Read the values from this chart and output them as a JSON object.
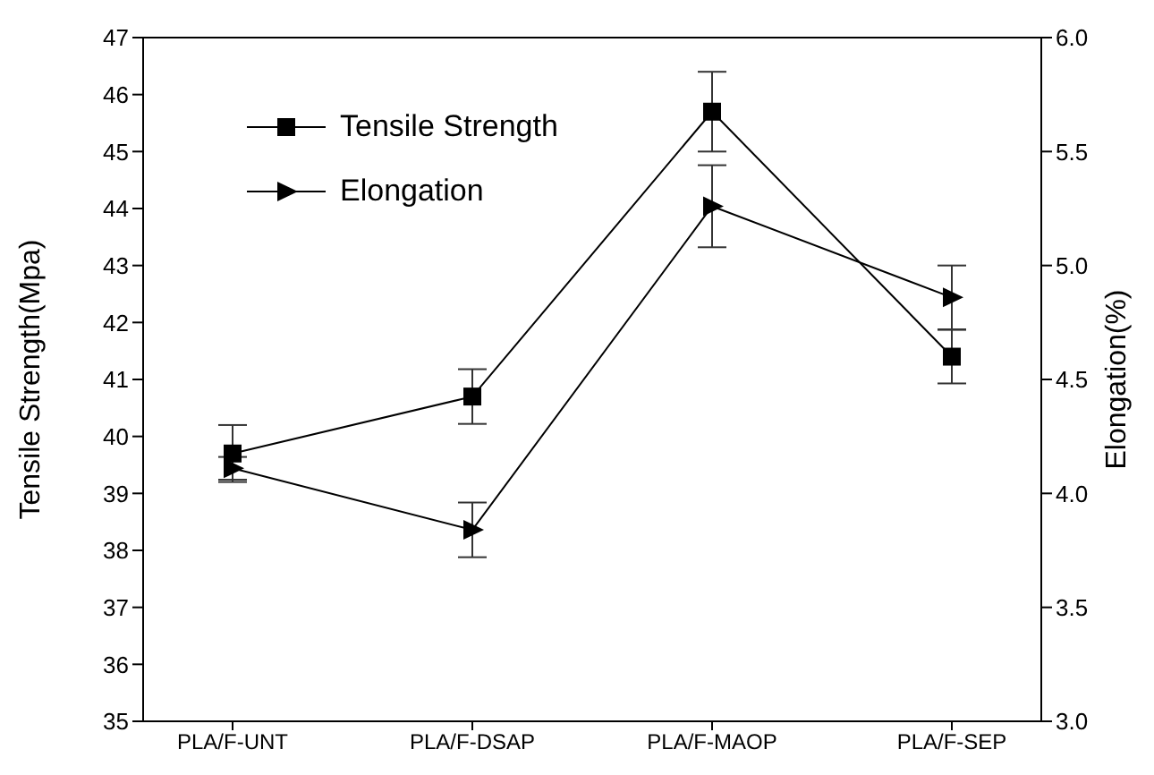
{
  "chart_data": {
    "type": "line",
    "categories": [
      "PLA/F-UNT",
      "PLA/F-DSAP",
      "PLA/F-MAOP",
      "PLA/F-SEP"
    ],
    "ylabel": "Tensile Strength(Mpa)",
    "y2label": "Elongation(%)",
    "ylim": [
      35,
      47
    ],
    "yticks": [
      35,
      36,
      37,
      38,
      39,
      40,
      41,
      42,
      43,
      44,
      45,
      46,
      47
    ],
    "y2lim": [
      3.0,
      6.0
    ],
    "y2ticks": [
      {
        "value": 3,
        "label": "3.0"
      },
      {
        "value": 3.5,
        "label": "3.5"
      },
      {
        "value": 4,
        "label": "4.0"
      },
      {
        "value": 4.5,
        "label": "4.5"
      },
      {
        "value": 5,
        "label": "5.0"
      },
      {
        "value": 5.5,
        "label": "5.5"
      },
      {
        "value": 6,
        "label": "6.0"
      }
    ],
    "legend": "top left",
    "series": [
      {
        "name": "Tensile Strength",
        "color": "#000000",
        "marker": "square",
        "values": [
          39.7,
          40.7,
          45.7,
          41.4
        ],
        "errors": [
          0.5,
          0.48,
          0.7,
          0.47
        ]
      },
      {
        "name": "Elongation",
        "color": "#000000",
        "marker": "triangle",
        "axis": "y2",
        "values": [
          4.11,
          3.84,
          5.26,
          4.86
        ],
        "errors": [
          0.05,
          0.12,
          0.18,
          0.14
        ]
      }
    ]
  }
}
